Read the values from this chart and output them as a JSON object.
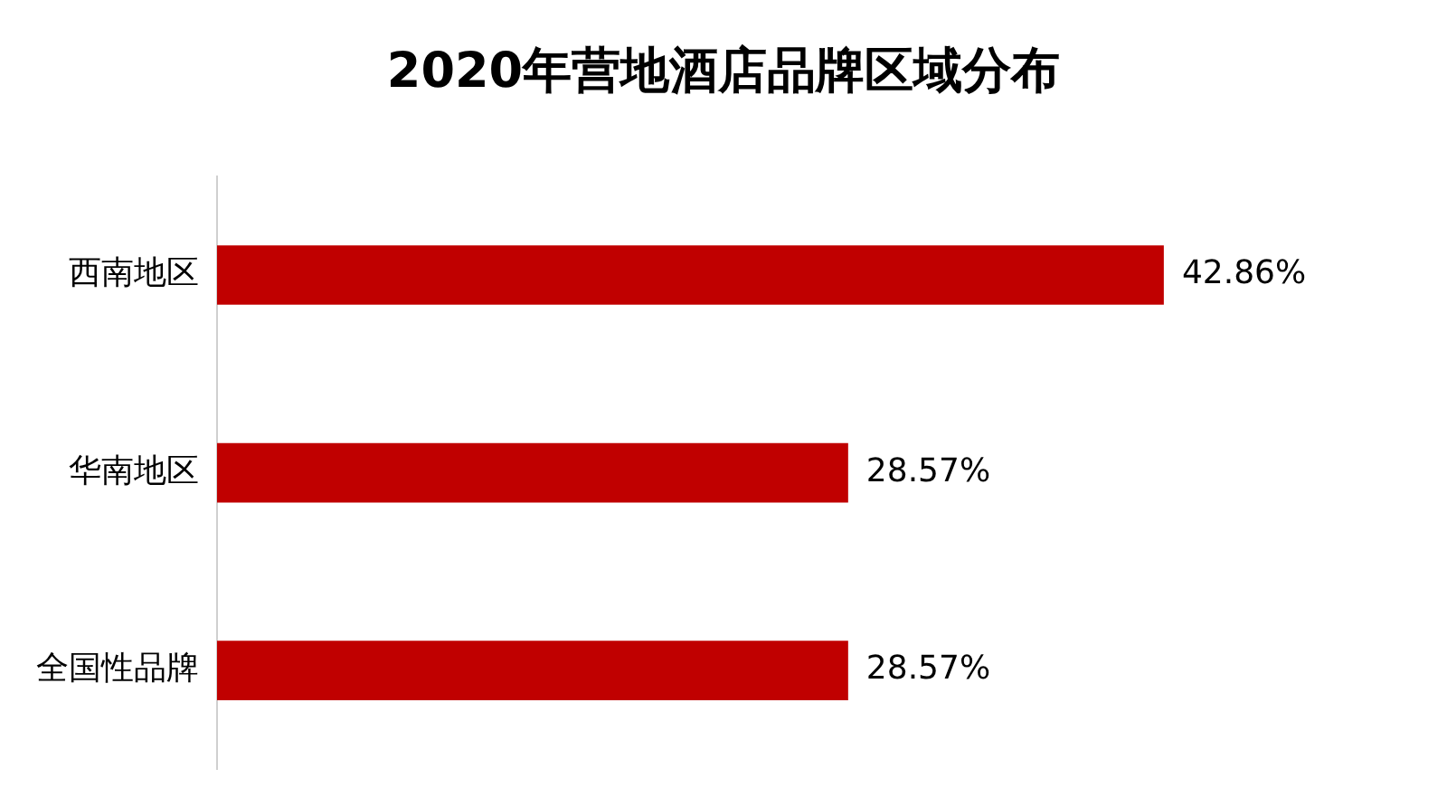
{
  "chart_data": {
    "type": "bar",
    "title": "2020年营地酒店品牌区域分布",
    "orientation": "horizontal",
    "categories": [
      "西南地区",
      "华南地区",
      "全国性品牌"
    ],
    "values": [
      42.86,
      28.57,
      28.57
    ],
    "value_labels": [
      "42.86%",
      "28.57%",
      "28.57%"
    ],
    "color": "#c00000"
  }
}
